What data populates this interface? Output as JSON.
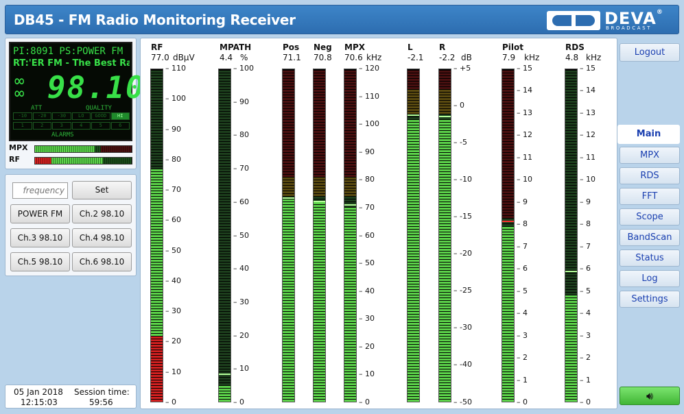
{
  "header": {
    "title": "DB45 - FM Radio Monitoring Receiver",
    "brand": "DEVA",
    "brand_mark": "®",
    "brand_sub": "BROADCAST"
  },
  "lcd": {
    "pi_ps": "PI:8091 PS:POWER FM",
    "rt": "RT:'ER FM - The Best Ra",
    "frequency": "98.10",
    "att_label": "ATT",
    "quality_label": "QUALITY",
    "att_cells": [
      "-10",
      "-20",
      "-30"
    ],
    "quality_cells": [
      "LO",
      "GOOD",
      "HI"
    ],
    "alarm_cells": [
      "1",
      "2",
      "3",
      "4",
      "5",
      "6"
    ],
    "alarms_label": "ALARMS"
  },
  "mini_meters": {
    "mpx": {
      "label": "MPX",
      "level": 0.62,
      "peak": 0.68
    },
    "rf": {
      "label": "RF",
      "level": 0.7,
      "red": 0.17
    }
  },
  "tuner": {
    "frequency_placeholder": "frequency",
    "set_label": "Set",
    "presets": [
      "POWER FM",
      "Ch.2 98.10",
      "Ch.3 98.10",
      "Ch.4 98.10",
      "Ch.5 98.10",
      "Ch.6 98.10"
    ]
  },
  "status": {
    "date": "05 Jan 2018",
    "time": "12:15:03",
    "session_label": "Session time:",
    "session": "59:56"
  },
  "meters": {
    "rf": {
      "name": "RF",
      "value": "77.0",
      "unit": "dBµV",
      "ticks": [
        "110",
        "100",
        "90",
        "80",
        "70",
        "60",
        "50",
        "40",
        "30",
        "20",
        "10",
        "0"
      ],
      "level": 0.7,
      "red_below": 0.2
    },
    "mpath": {
      "name": "MPATH",
      "value": "4.4",
      "unit": "%",
      "ticks": [
        "100",
        "90",
        "80",
        "70",
        "60",
        "50",
        "40",
        "30",
        "20",
        "10",
        "0"
      ],
      "level": 0.05,
      "peak": 0.08
    },
    "pos": {
      "name": "Pos",
      "value": "71.1",
      "level": 0.61,
      "peak": 0.61
    },
    "neg": {
      "name": "Neg",
      "value": "70.8",
      "level": 0.6,
      "peak": 0.6
    },
    "mpx": {
      "name": "MPX",
      "value": "70.6",
      "unit": "kHz",
      "ticks": [
        "120",
        "110",
        "100",
        "90",
        "80",
        "70",
        "60",
        "50",
        "40",
        "30",
        "20",
        "10",
        "0"
      ],
      "level": 0.59,
      "peak": 0.59
    },
    "l": {
      "name": "L",
      "value": "-2.1",
      "level": 0.85,
      "peak": 0.86
    },
    "r": {
      "name": "R",
      "value": "-2.2",
      "unit": "dB",
      "ticks": [
        "+5",
        "0",
        "-5",
        "-10",
        "-15",
        "-20",
        "-25",
        "-30",
        "-40",
        "-50"
      ],
      "level": 0.85,
      "peak": 0.855
    },
    "pilot": {
      "name": "Pilot",
      "value": "7.9",
      "unit": "kHz",
      "ticks": [
        "15",
        "14",
        "13",
        "12",
        "11",
        "10",
        "9",
        "8",
        "7",
        "6",
        "5",
        "4",
        "3",
        "2",
        "1",
        "0"
      ],
      "level": 0.53,
      "peak": 0.54
    },
    "rds": {
      "name": "RDS",
      "value": "4.8",
      "unit": "kHz",
      "ticks": [
        "15",
        "14",
        "13",
        "12",
        "11",
        "10",
        "9",
        "8",
        "7",
        "6",
        "5",
        "4",
        "3",
        "2",
        "1",
        "0"
      ],
      "level": 0.32,
      "peak": 0.39
    }
  },
  "nav": {
    "logout": "Logout",
    "items": [
      "Main",
      "MPX",
      "RDS",
      "FFT",
      "Scope",
      "BandScan",
      "Status",
      "Log",
      "Settings"
    ],
    "active": "Main",
    "sound_icon": "speaker-icon"
  },
  "colors": {
    "header": "#2d6db0",
    "green": "#5cd34a",
    "red": "#d22020",
    "amber": "#8a6a10",
    "nav_text": "#1a3fb0"
  }
}
